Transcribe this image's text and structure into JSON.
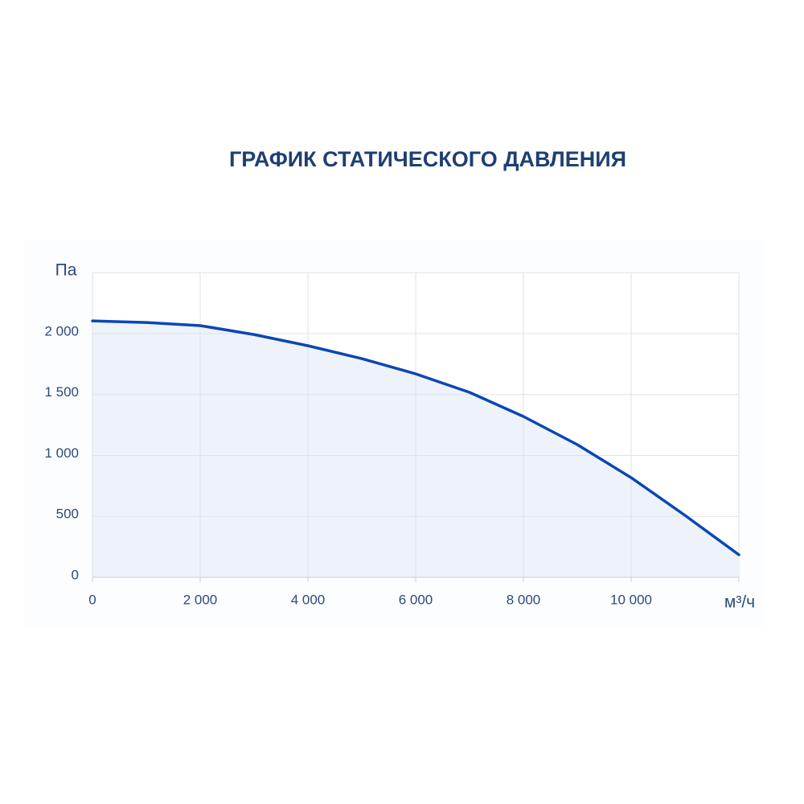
{
  "chart_data": {
    "type": "line",
    "title": "ГРАФИК СТАТИЧЕСКОГО ДАВЛЕНИЯ",
    "y_label": "Па",
    "x_label": "м³/ч",
    "x": [
      0,
      1000,
      2000,
      3000,
      4000,
      5000,
      6000,
      7000,
      8000,
      9000,
      10000,
      11000,
      12000
    ],
    "series": [
      {
        "color": "#0a47b5",
        "values": [
          2105,
          2092,
          2066,
          1993,
          1901,
          1795,
          1670,
          1518,
          1320,
          1089,
          818,
          508,
          185
        ]
      }
    ],
    "area_color": "#eef3fa",
    "xlim": [
      0,
      12000
    ],
    "xticks": [
      0,
      {
        "value": 2000,
        "label": "2 000"
      },
      {
        "value": 4000,
        "label": "4 000"
      },
      {
        "value": 6000,
        "label": "6 000"
      },
      {
        "value": 8000,
        "label": "8 000"
      },
      {
        "value": 10000,
        "label": "10 000"
      }
    ],
    "ylim": [
      0,
      2500
    ],
    "yticks": [
      0,
      500,
      {
        "value": 1000,
        "label": "1 000"
      },
      {
        "value": 1500,
        "label": "1 500"
      },
      {
        "value": 2000,
        "label": "2 000"
      }
    ],
    "grid": true
  }
}
